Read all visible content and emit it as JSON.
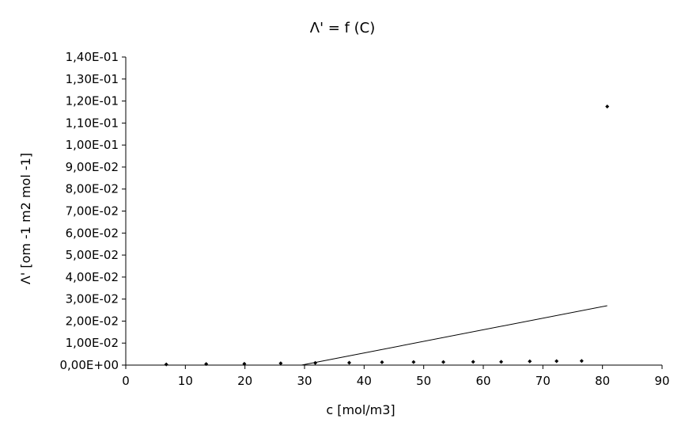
{
  "chart_data": {
    "type": "scatter",
    "title": "Λ' = f (C)",
    "xlabel": "c [mol/m3]",
    "ylabel": "Λ' [om -1 m2 mol -1]",
    "xlim": [
      0,
      90
    ],
    "ylim": [
      0,
      0.14
    ],
    "x_ticks": [
      0,
      10,
      20,
      30,
      40,
      50,
      60,
      70,
      80,
      90
    ],
    "x_tick_labels": [
      "0",
      "10",
      "20",
      "30",
      "40",
      "50",
      "60",
      "70",
      "80",
      "90"
    ],
    "y_ticks": [
      0,
      0.01,
      0.02,
      0.03,
      0.04,
      0.05,
      0.06,
      0.07,
      0.08,
      0.09,
      0.1,
      0.11,
      0.12,
      0.13,
      0.14
    ],
    "y_tick_labels": [
      "0,00E+00",
      "1,00E-02",
      "2,00E-02",
      "3,00E-02",
      "4,00E-02",
      "5,00E-02",
      "6,00E-02",
      "7,00E-02",
      "8,00E-02",
      "9,00E-02",
      "1,00E-01",
      "1,10E-01",
      "1,20E-01",
      "1,30E-01",
      "1,40E-01"
    ],
    "grid": false,
    "series": [
      {
        "kind": "points",
        "x": [
          6.8,
          13.5,
          19.9,
          26.0,
          31.8,
          37.5,
          43.0,
          48.3,
          53.3,
          58.3,
          63.0,
          67.8,
          72.3,
          76.5,
          80.8
        ],
        "y": [
          0.0003,
          0.0005,
          0.0006,
          0.0008,
          0.001,
          0.0011,
          0.0013,
          0.0014,
          0.0014,
          0.0015,
          0.0015,
          0.0017,
          0.0018,
          0.0019,
          0.1175
        ]
      },
      {
        "kind": "trendline",
        "x": [
          29.5,
          80.8
        ],
        "y": [
          0.0,
          0.027
        ]
      }
    ],
    "colors": {
      "marker": "#000000",
      "line": "#000000",
      "axis": "#000000"
    }
  }
}
